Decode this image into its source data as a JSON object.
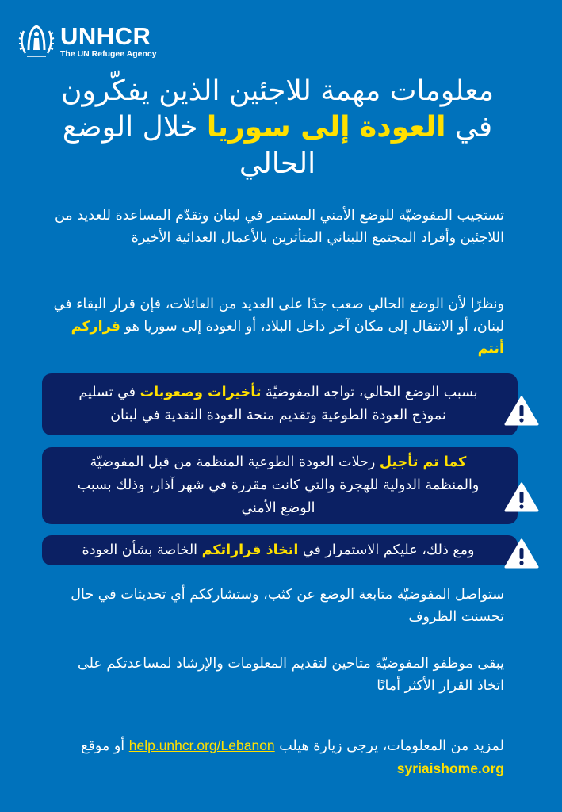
{
  "logo": {
    "name": "UNHCR",
    "subtitle": "The UN Refugee Agency"
  },
  "title": {
    "before": "معلومات مهمة للاجئين الذين يفكّرون في ",
    "highlight": "العودة إلى سوريا",
    "after": " خلال الوضع الحالي"
  },
  "paragraphs": [
    {
      "text": "تستجيب المفوضيّة للوضع الأمني المستمر في لبنان وتقدّم المساعدة للعديد من اللاجئين وأفراد المجتمع اللبناني المتأثرين بالأعمال العدائية الأخيرة"
    },
    {
      "before": "ونظرًا لأن الوضع الحالي صعب جدًا على العديد من العائلات، فإن قرار البقاء في لبنان، أو الانتقال إلى مكان آخر داخل البلاد، أو العودة إلى سوريا هو ",
      "highlight": "قراركم أنتم"
    }
  ],
  "alerts": [
    {
      "before": "بسبب الوضع الحالي، تواجه المفوضيّة ",
      "highlight": "تأخيرات وصعوبات",
      "after": " في تسليم نموذج العودة الطوعية وتقديم منحة العودة النقدية في لبنان",
      "icon": "warning-icon"
    },
    {
      "before": "",
      "highlight": "كما تم تأجيل",
      "after": " رحلات العودة الطوعية المنظمة من قبل المفوضيّة والمنظمة الدولية للهجرة والتي كانت مقررة في شهر آذار، وذلك بسبب الوضع الأمني",
      "icon": "warning-icon"
    },
    {
      "before": "ومع ذلك، عليكم الاستمرار في ",
      "highlight": "اتخاذ قراراتكم",
      "after": " الخاصة بشأن العودة",
      "icon": "warning-icon"
    }
  ],
  "closing": [
    "ستواصل المفوضيّة متابعة الوضع عن كثب، وستشارككم أي تحديثات في حال تحسنت الظروف",
    "يبقى موظفو المفوضيّة متاحين لتقديم المعلومات والإرشاد لمساعدتكم على اتخاذ القرار الأكثر أمانًا"
  ],
  "footer": {
    "before": "لمزيد من المعلومات، يرجى زيارة هيلب ",
    "link1": "help.unhcr.org/Lebanon",
    "middle": " أو موقع ",
    "link2": "syriaishome.org"
  },
  "colors": {
    "background": "#0072bc",
    "alert_box": "#0b2063",
    "highlight": "#ffe000"
  }
}
